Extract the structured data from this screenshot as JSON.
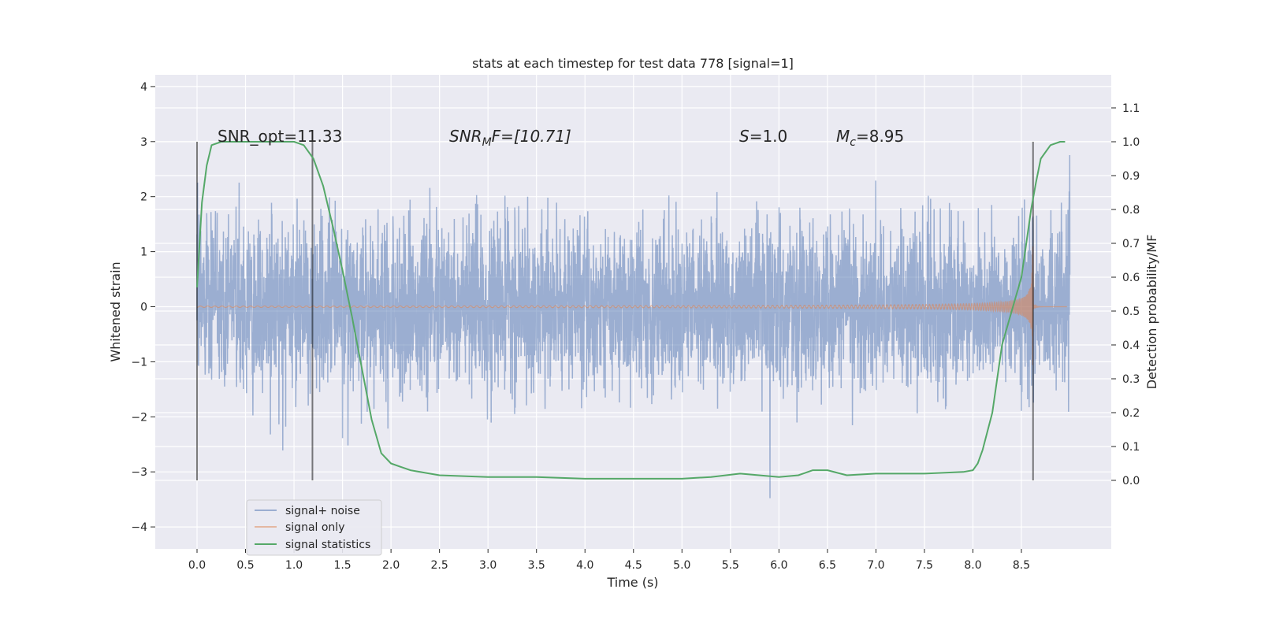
{
  "chart_data": {
    "type": "line",
    "title": "stats at each timestep for test data 778 [signal=1]",
    "xlabel": "Time (s)",
    "ylabel": "Whitened strain",
    "ylabel_right": "Detection probability/MF",
    "xlim": [
      -0.43,
      9.43
    ],
    "ylim": [
      -4.4,
      4.2
    ],
    "ylim_right": [
      -0.2,
      1.2
    ],
    "xticks": [
      "0.0",
      "0.5",
      "1.0",
      "1.5",
      "2.0",
      "2.5",
      "3.0",
      "3.5",
      "4.0",
      "4.5",
      "5.0",
      "5.5",
      "6.0",
      "6.5",
      "7.0",
      "7.5",
      "8.0",
      "8.5"
    ],
    "yticks": [
      "4",
      "3",
      "2",
      "1",
      "0",
      "−1",
      "−2",
      "−3",
      "−4"
    ],
    "yticks_right": [
      "1.1",
      "1.0",
      "0.9",
      "0.8",
      "0.7",
      "0.6",
      "0.5",
      "0.4",
      "0.3",
      "0.2",
      "0.1",
      "0.0"
    ],
    "grid": true,
    "legend_placement": "lower-left",
    "legend": [
      "signal+ noise",
      "signal only",
      "signal statistics"
    ],
    "annotations": {
      "snr_opt": "SNR_opt=11.33",
      "snr_mf_label": "SNR",
      "snr_mf_sub": "M",
      "snr_mf_rest": "F=[10.71]",
      "s_label": "S",
      "s_rest": "=1.0",
      "mc_label": "M",
      "mc_sub": "c",
      "mc_rest": "=8.95"
    },
    "vertical_markers_s": [
      0.0,
      1.19,
      8.62
    ],
    "noise": {
      "t_start": 0.0,
      "t_end": 9.0,
      "std": 0.72
    },
    "signal": {
      "merger_s": 8.62,
      "peak_amplitude": 1.1
    },
    "statistics": {
      "t": [
        0,
        0.05,
        0.1,
        0.15,
        0.25,
        0.5,
        0.8,
        1.0,
        1.1,
        1.2,
        1.3,
        1.4,
        1.5,
        1.6,
        1.7,
        1.8,
        1.9,
        2.0,
        2.2,
        2.5,
        3.0,
        3.5,
        4.0,
        4.5,
        5.0,
        5.3,
        5.6,
        6.0,
        6.2,
        6.35,
        6.5,
        6.7,
        7.0,
        7.5,
        7.9,
        8.0,
        8.05,
        8.1,
        8.2,
        8.3,
        8.4,
        8.5,
        8.55,
        8.6,
        8.65,
        8.7,
        8.8,
        8.9,
        8.95
      ],
      "p": [
        0.57,
        0.82,
        0.93,
        0.99,
        1.0,
        1.0,
        1.0,
        1.0,
        0.99,
        0.95,
        0.87,
        0.75,
        0.62,
        0.48,
        0.33,
        0.18,
        0.08,
        0.05,
        0.03,
        0.015,
        0.01,
        0.01,
        0.005,
        0.005,
        0.005,
        0.01,
        0.02,
        0.01,
        0.015,
        0.03,
        0.03,
        0.015,
        0.02,
        0.02,
        0.025,
        0.03,
        0.05,
        0.09,
        0.2,
        0.4,
        0.5,
        0.6,
        0.7,
        0.8,
        0.88,
        0.95,
        0.99,
        1.0,
        1.0
      ]
    },
    "colors": {
      "background": "#EAEAF2",
      "noise": "#4C72B0",
      "signal": "#DD8452",
      "stats": "#55A868",
      "marker": "#555555"
    }
  }
}
